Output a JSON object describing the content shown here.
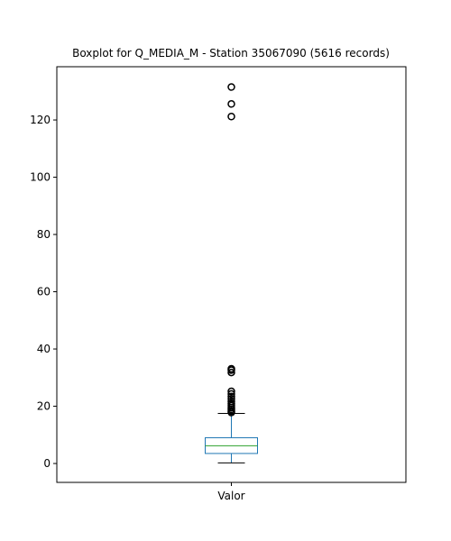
{
  "chart_data": {
    "type": "boxplot",
    "title": "Boxplot for Q_MEDIA_M - Station 35067090 (5616 records)",
    "xlabel": "",
    "ylabel": "",
    "categories": [
      "Valor"
    ],
    "ylim": [
      -6.6,
      138.6
    ],
    "yticks": [
      0,
      20,
      40,
      60,
      80,
      100,
      120
    ],
    "grid": false,
    "box": {
      "whisker_low": 0.2,
      "q1": 3.5,
      "median": 6.2,
      "q3": 9.0,
      "whisker_high": 17.5
    },
    "outliers": [
      17.8,
      18.3,
      18.9,
      19.5,
      20.2,
      20.9,
      21.7,
      22.6,
      23.4,
      24.3,
      25.2,
      31.8,
      32.6,
      33.1,
      121.2,
      125.6,
      131.5
    ],
    "colors": {
      "box": "#1f77b4",
      "median": "#2ca02c",
      "whisker": "#1f77b4",
      "cap": "#000000",
      "outlier": "#000000"
    }
  }
}
